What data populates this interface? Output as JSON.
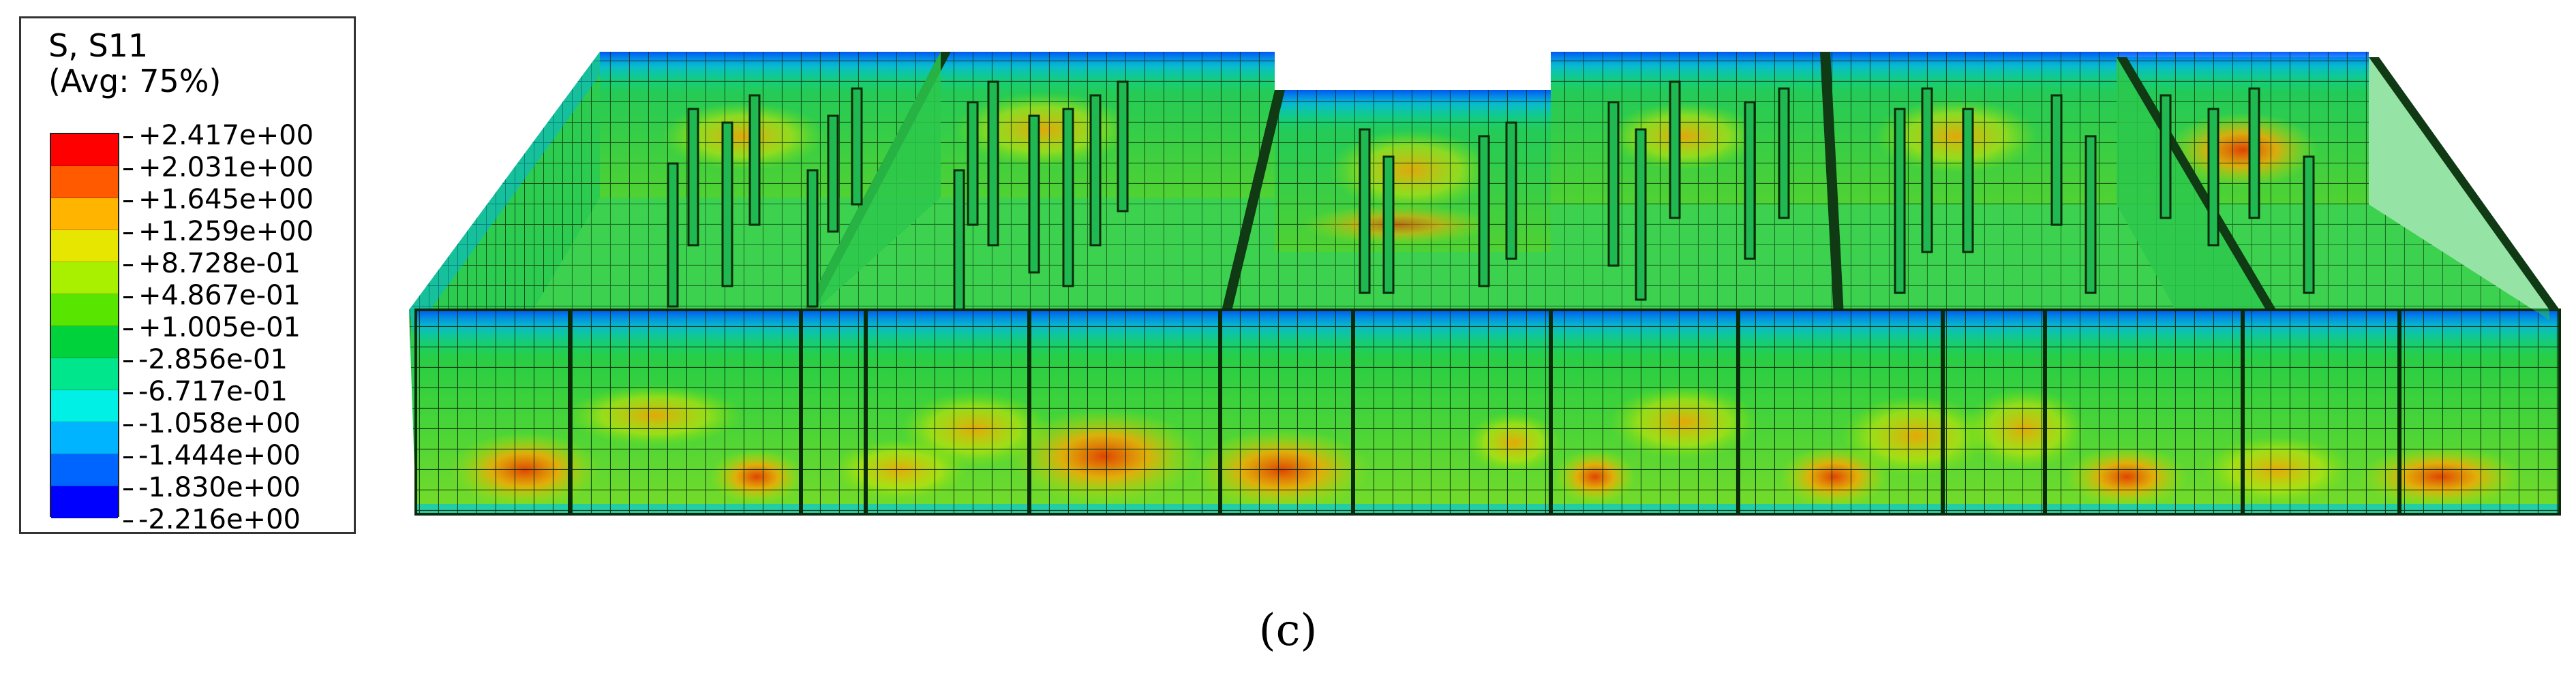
{
  "legend": {
    "title_line1": "S, S11",
    "title_line2": "(Avg: 75%)",
    "values": [
      "+2.417e+00",
      "+2.031e+00",
      "+1.645e+00",
      "+1.259e+00",
      "+8.728e-01",
      "+4.867e-01",
      "+1.005e-01",
      "-2.856e-01",
      "-6.717e-01",
      "-1.058e+00",
      "-1.444e+00",
      "-1.830e+00",
      "-2.216e+00"
    ],
    "colors": [
      "#ff0000",
      "#ff5a00",
      "#ffb400",
      "#e6e600",
      "#a8f000",
      "#58e600",
      "#00d23c",
      "#00e68c",
      "#00f0e6",
      "#00b4ff",
      "#0064ff",
      "#0000ff"
    ]
  },
  "caption": "(c)"
}
